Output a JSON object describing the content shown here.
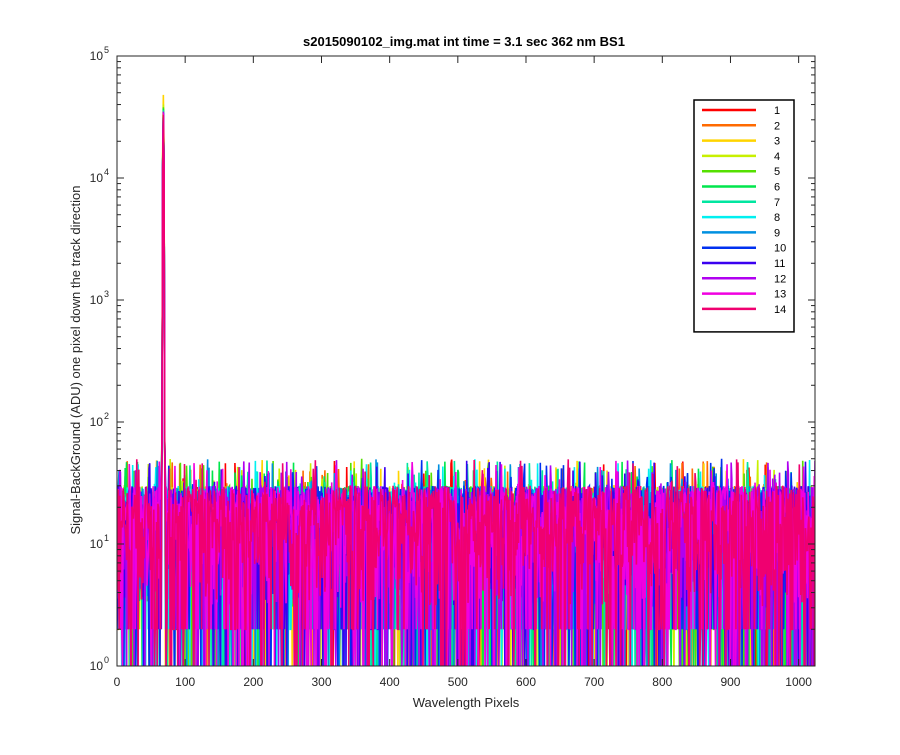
{
  "chart_data": {
    "type": "line",
    "title": "s2015090102_img.mat int time = 3.1 sec  362 nm BS1",
    "xlabel": "Wavelength Pixels",
    "ylabel": "Signal-BackGround (ADU) one pixel down the track direction",
    "xlim": [
      0,
      1024
    ],
    "ylim": [
      1,
      100000
    ],
    "yscale": "log",
    "grid": false,
    "legend_position": "top-right",
    "x_ticks": [
      0,
      100,
      200,
      300,
      400,
      500,
      600,
      700,
      800,
      900,
      1000
    ],
    "x_tick_labels": [
      "0",
      "100",
      "200",
      "300",
      "400",
      "500",
      "600",
      "700",
      "800",
      "900",
      "1000"
    ],
    "y_ticks": [
      1,
      10,
      100,
      1000,
      10000,
      100000
    ],
    "y_tick_labels": [
      {
        "base": "10",
        "exp": "0"
      },
      {
        "base": "10",
        "exp": "1"
      },
      {
        "base": "10",
        "exp": "2"
      },
      {
        "base": "10",
        "exp": "3"
      },
      {
        "base": "10",
        "exp": "4"
      },
      {
        "base": "10",
        "exp": "5"
      }
    ],
    "peak": {
      "x": 68,
      "width": 3
    },
    "noise": {
      "min": 1,
      "max": 50,
      "typical_low": 2,
      "typical_high": 30
    },
    "series": [
      {
        "name": "1",
        "color": "#ff0000",
        "peak_value": 34000
      },
      {
        "name": "2",
        "color": "#ff6a00",
        "peak_value": 36000
      },
      {
        "name": "3",
        "color": "#ffd400",
        "peak_value": 48000
      },
      {
        "name": "4",
        "color": "#c8f000",
        "peak_value": 40000
      },
      {
        "name": "5",
        "color": "#55e000",
        "peak_value": 38000
      },
      {
        "name": "6",
        "color": "#00e64d",
        "peak_value": 37000
      },
      {
        "name": "7",
        "color": "#00e6a0",
        "peak_value": 36000
      },
      {
        "name": "8",
        "color": "#00f0f0",
        "peak_value": 35000
      },
      {
        "name": "9",
        "color": "#0090e0",
        "peak_value": 34000
      },
      {
        "name": "10",
        "color": "#0030f0",
        "peak_value": 34000
      },
      {
        "name": "11",
        "color": "#3a00f0",
        "peak_value": 34000
      },
      {
        "name": "12",
        "color": "#b000f0",
        "peak_value": 35000
      },
      {
        "name": "13",
        "color": "#f000e0",
        "peak_value": 34000
      },
      {
        "name": "14",
        "color": "#f00070",
        "peak_value": 33000
      }
    ]
  }
}
